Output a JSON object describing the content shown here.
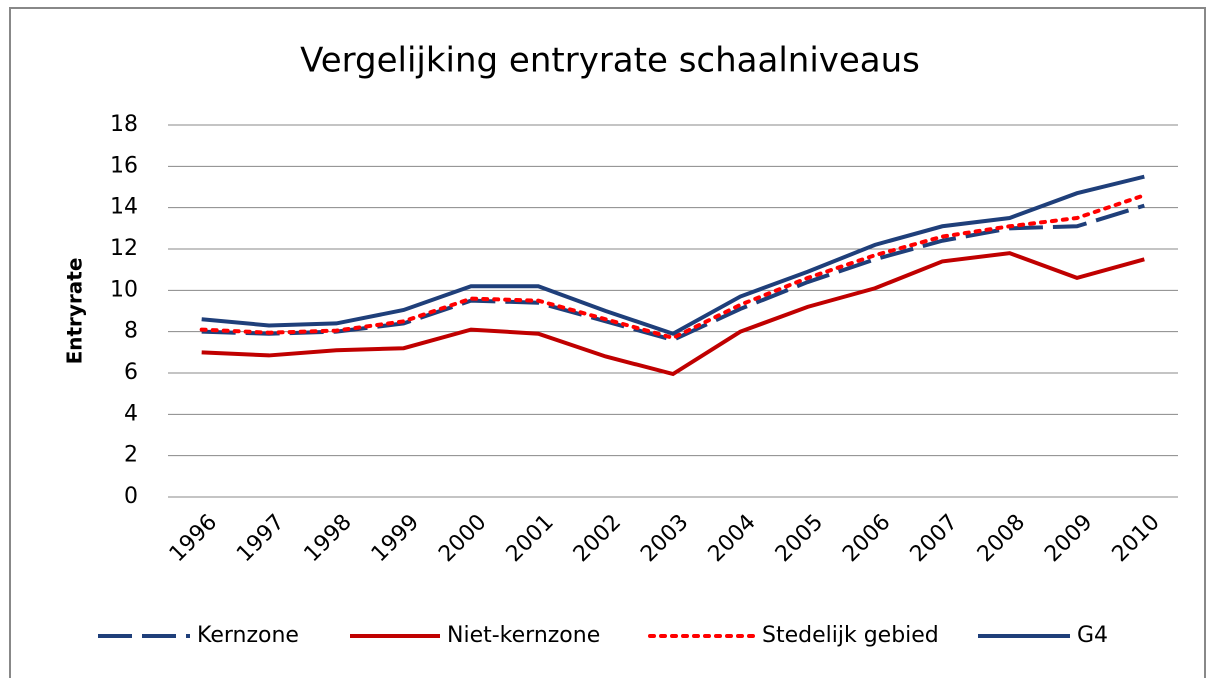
{
  "chart_data": {
    "type": "line",
    "title": "Vergelijking entryrate schaalniveaus",
    "y_label": "Entryrate",
    "categories": [
      "1996",
      "1997",
      "1998",
      "1999",
      "2000",
      "2001",
      "2002",
      "2003",
      "2004",
      "2005",
      "2006",
      "2007",
      "2008",
      "2009",
      "2010"
    ],
    "series": [
      {
        "name": "Kernzone",
        "color": "#1f3f7a",
        "dash": "dashed",
        "values": [
          8.0,
          7.9,
          8.0,
          8.4,
          9.5,
          9.4,
          8.5,
          7.6,
          9.1,
          10.4,
          11.5,
          12.4,
          13.0,
          13.1,
          14.1
        ]
      },
      {
        "name": "Niet-kernzone",
        "color": "#c00000",
        "dash": "solid",
        "values": [
          7.0,
          6.85,
          7.1,
          7.2,
          8.1,
          7.9,
          6.8,
          5.95,
          8.0,
          9.2,
          10.1,
          11.4,
          11.8,
          10.6,
          11.5
        ]
      },
      {
        "name": "Stedelijk gebied",
        "color": "#ff0000",
        "dash": "dotted",
        "values": [
          8.1,
          7.95,
          8.05,
          8.5,
          9.6,
          9.5,
          8.6,
          7.7,
          9.3,
          10.6,
          11.7,
          12.6,
          13.1,
          13.5,
          14.6
        ]
      },
      {
        "name": "G4",
        "color": "#1f3f7a",
        "dash": "solid",
        "values": [
          8.6,
          8.3,
          8.4,
          9.05,
          10.2,
          10.2,
          9.0,
          7.9,
          9.7,
          10.9,
          12.2,
          13.1,
          13.5,
          14.7,
          15.5
        ]
      }
    ],
    "ylim": [
      0,
      18
    ],
    "yticks": [
      0,
      2,
      4,
      6,
      8,
      10,
      12,
      14,
      16,
      18
    ],
    "grid": true,
    "legend": "bottom"
  }
}
